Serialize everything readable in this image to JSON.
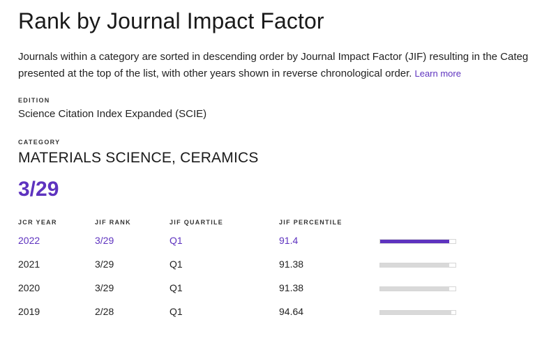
{
  "title": "Rank by Journal Impact Factor",
  "description": {
    "line1": "Journals within a category are sorted in descending order by Journal Impact Factor (JIF) resulting in the Categ",
    "line2": "presented at the top of the list, with other years shown in reverse chronological order.",
    "learn_more": "Learn more"
  },
  "edition": {
    "label": "EDITION",
    "value": "Science Citation Index Expanded (SCIE)"
  },
  "category": {
    "label": "CATEGORY",
    "value": "MATERIALS SCIENCE, CERAMICS"
  },
  "rank": "3/29",
  "table": {
    "headers": {
      "year": "JCR YEAR",
      "rank": "JIF RANK",
      "quartile": "JIF QUARTILE",
      "percentile": "JIF PERCENTILE"
    },
    "rows": [
      {
        "year": "2022",
        "rank": "3/29",
        "quartile": "Q1",
        "percentile": "91.4",
        "active": true
      },
      {
        "year": "2021",
        "rank": "3/29",
        "quartile": "Q1",
        "percentile": "91.38",
        "active": false
      },
      {
        "year": "2020",
        "rank": "3/29",
        "quartile": "Q1",
        "percentile": "91.38",
        "active": false
      },
      {
        "year": "2019",
        "rank": "2/28",
        "quartile": "Q1",
        "percentile": "94.64",
        "active": false
      }
    ]
  },
  "colors": {
    "accent": "#5e33bf",
    "bar_inactive": "#d9d9d9"
  }
}
